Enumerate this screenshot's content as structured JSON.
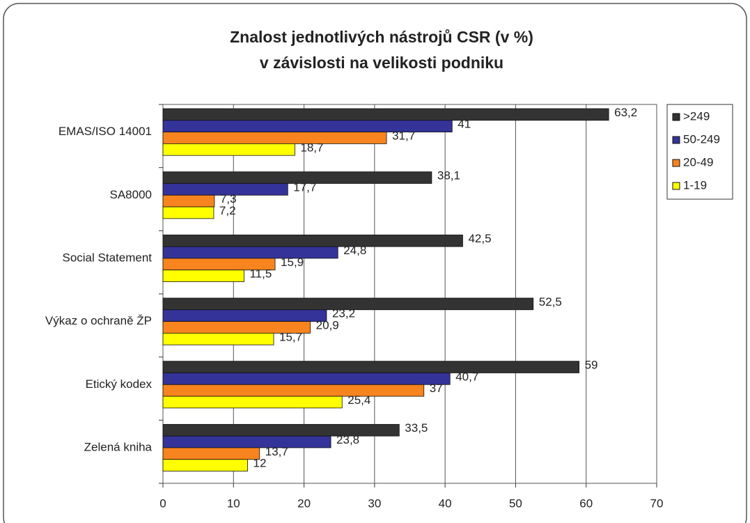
{
  "chart_data": {
    "type": "hbar",
    "title": [
      "Znalost jednotlivých nástrojů CSR (v %)",
      "v závislosti na velikosti podniku"
    ],
    "categories": [
      "EMAS/ISO 14001",
      "SA8000",
      "Social Statement",
      "Výkaz o ochraně ŽP",
      "Etický kodex",
      "Zelená kniha"
    ],
    "series": [
      {
        "name": ">249",
        "color": "#333333",
        "values": [
          63.2,
          38.1,
          42.5,
          52.5,
          59,
          33.5
        ],
        "value_labels": [
          "63,2",
          "38,1",
          "42,5",
          "52,5",
          "59",
          "33,5"
        ]
      },
      {
        "name": "50-249",
        "color": "#333399",
        "values": [
          41,
          17.7,
          24.8,
          23.2,
          40.7,
          23.8
        ],
        "value_labels": [
          "41",
          "17,7",
          "24,8",
          "23,2",
          "40,7",
          "23,8"
        ]
      },
      {
        "name": "20-49",
        "color": "#f7841e",
        "values": [
          31.7,
          7.3,
          15.9,
          20.9,
          37,
          13.7
        ],
        "value_labels": [
          "31,7",
          "7,3",
          "15,9",
          "20,9",
          "37",
          "13,7"
        ]
      },
      {
        "name": "1-19",
        "color": "#ffff00",
        "values": [
          18.7,
          7.2,
          11.5,
          15.7,
          25.4,
          12
        ],
        "value_labels": [
          "18,7",
          "7,2",
          "11,5",
          "15,7",
          "25,4",
          "12"
        ]
      }
    ],
    "xlim": [
      0,
      70
    ],
    "xticks": [
      0,
      10,
      20,
      30,
      40,
      50,
      60,
      70
    ],
    "grid": true,
    "legend": "right"
  }
}
